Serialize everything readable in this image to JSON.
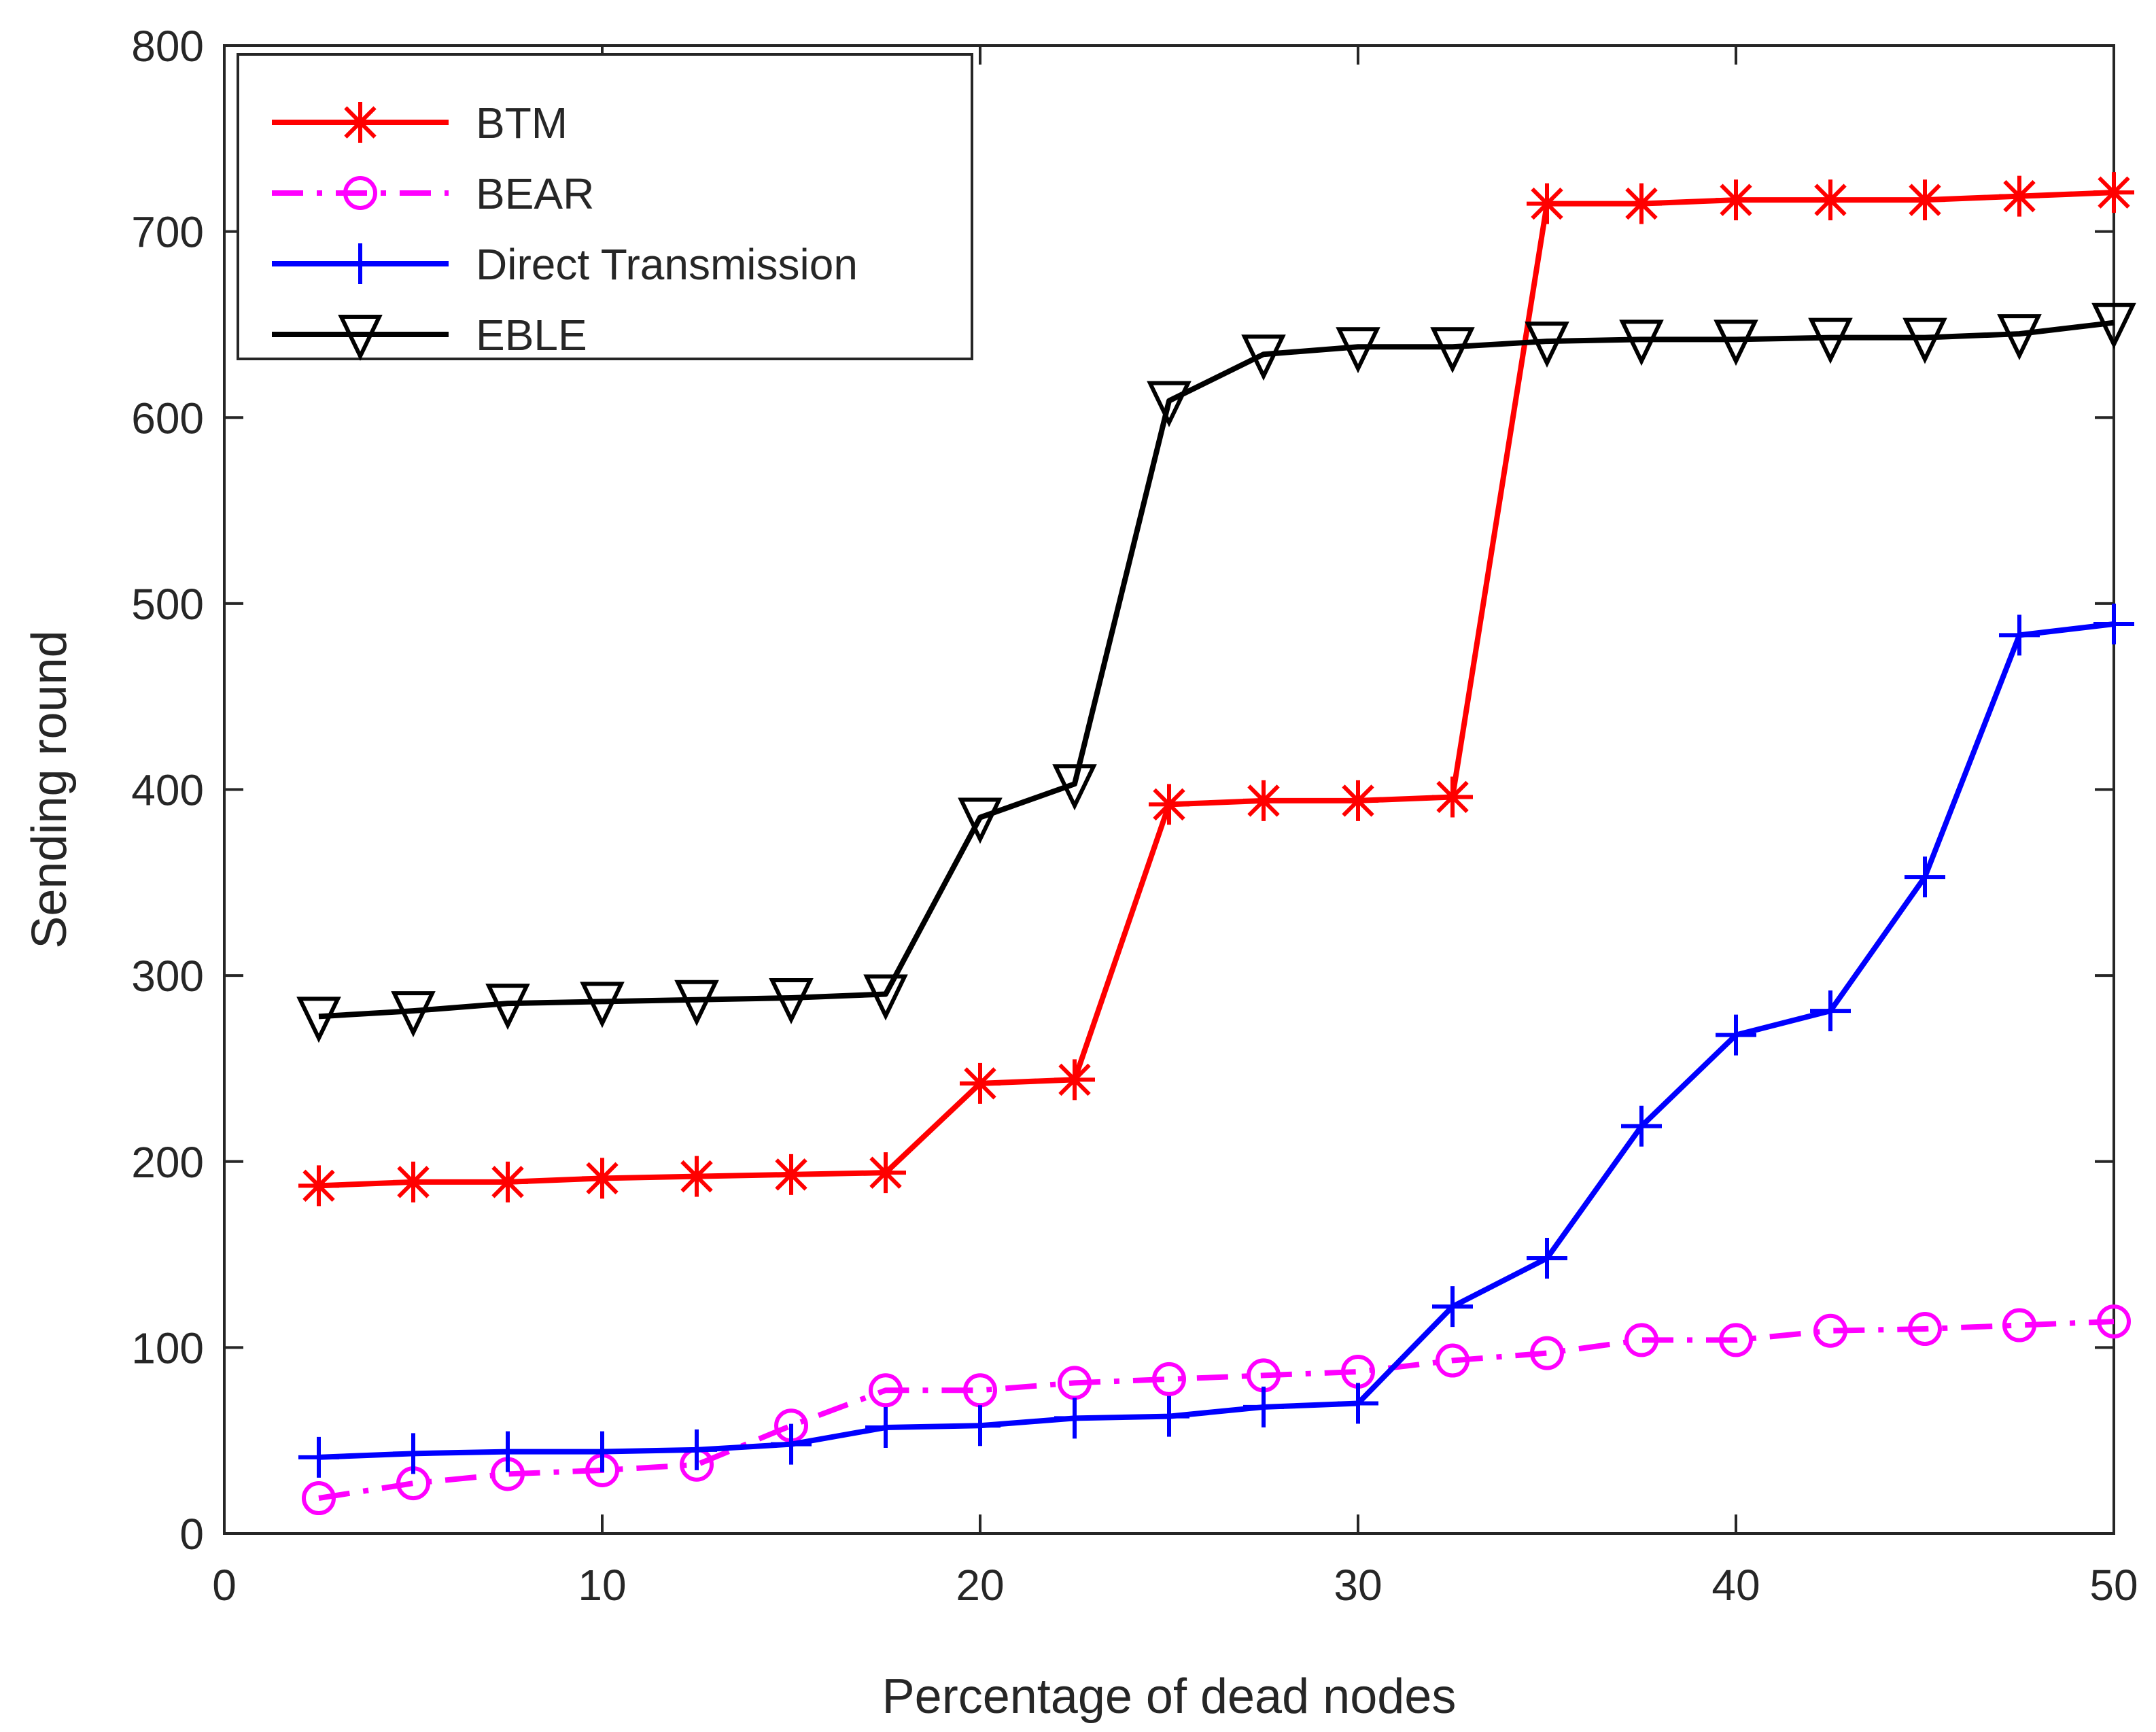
{
  "chart_data": {
    "type": "line",
    "title": "",
    "xlabel": "Percentage of dead nodes",
    "ylabel": "Sending round",
    "xlim": [
      0,
      50
    ],
    "ylim": [
      0,
      800
    ],
    "xticks": [
      0,
      10,
      20,
      30,
      40,
      50
    ],
    "yticks": [
      0,
      100,
      200,
      300,
      400,
      500,
      600,
      700,
      800
    ],
    "x": [
      2.5,
      5,
      7.5,
      10,
      12.5,
      15,
      17.5,
      20,
      22.5,
      25,
      27.5,
      30,
      32.5,
      35,
      37.5,
      40,
      42.5,
      45,
      47.5,
      50
    ],
    "legend_position": "top-left",
    "grid": false,
    "series": [
      {
        "name": "BTM",
        "color": "#ff0000",
        "marker": "asterisk",
        "line_style": "solid",
        "values": [
          187,
          189,
          189,
          191,
          192,
          193,
          194,
          242,
          244,
          392,
          394,
          394,
          396,
          715,
          715,
          717,
          717,
          717,
          719,
          721
        ]
      },
      {
        "name": "BEAR",
        "color": "#ff00ff",
        "marker": "circle",
        "line_style": "dash-dot",
        "values": [
          19,
          27,
          32,
          34,
          37,
          58,
          77,
          77,
          81,
          83,
          85,
          87,
          93,
          97,
          104,
          104,
          109,
          110,
          112,
          114
        ]
      },
      {
        "name": "Direct Transmission",
        "color": "#0000ff",
        "marker": "plus",
        "line_style": "solid",
        "values": [
          41,
          43,
          44,
          44,
          45,
          48,
          57,
          58,
          62,
          63,
          68,
          70,
          122,
          148,
          219,
          268,
          281,
          353,
          483,
          489
        ]
      },
      {
        "name": "EBLE",
        "color": "#000000",
        "marker": "triangle-down",
        "line_style": "solid",
        "values": [
          278,
          281,
          285,
          286,
          287,
          288,
          290,
          385,
          403,
          609,
          634,
          638,
          638,
          641,
          642,
          642,
          643,
          643,
          645,
          651
        ]
      }
    ]
  }
}
